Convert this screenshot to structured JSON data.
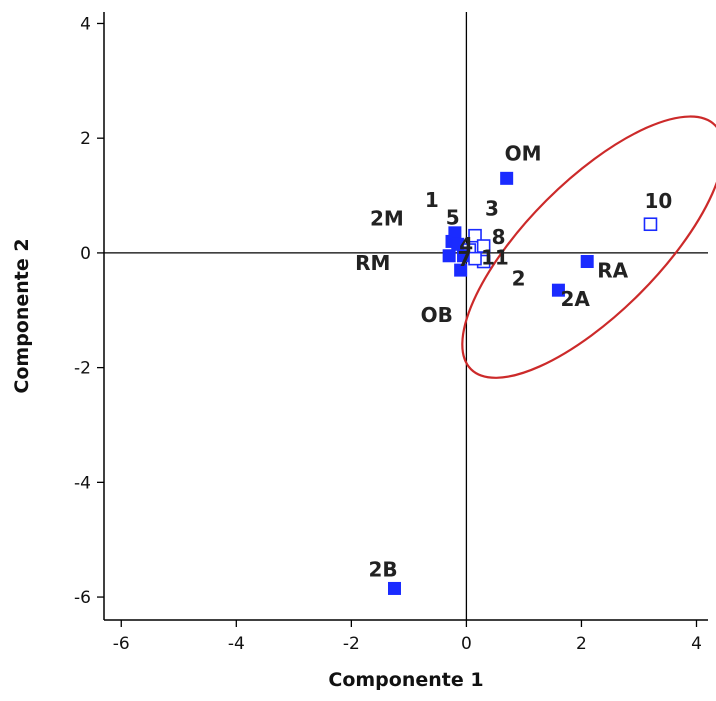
{
  "chart_data": {
    "type": "scatter",
    "xlabel": "Componente 1",
    "ylabel": "Componente 2",
    "xlim": [
      -6.3,
      4.2
    ],
    "ylim": [
      -6.4,
      4.2
    ],
    "xticks": [
      "-6",
      "-4",
      "-2",
      "0",
      "2",
      "4"
    ],
    "yticks": [
      "4",
      "2",
      "0",
      "-2",
      "-4",
      "-6"
    ],
    "grid": false,
    "reference_lines": {
      "x": 0,
      "y": 0
    },
    "colors": {
      "marker": "#1a2bff",
      "ellipse": "#cc2a2a",
      "axis": "#000000"
    },
    "points": [
      {
        "label": "OM",
        "x": 0.7,
        "y": 1.3,
        "filled": true
      },
      {
        "label": "10",
        "x": 3.2,
        "y": 0.5,
        "filled": false
      },
      {
        "label": "RA",
        "x": 2.1,
        "y": -0.15,
        "filled": true
      },
      {
        "label": "2A",
        "x": 1.6,
        "y": -0.65,
        "filled": true
      },
      {
        "label": "2B",
        "x": -1.25,
        "y": -5.85,
        "filled": true
      },
      {
        "label": "RM",
        "x": -0.3,
        "y": -0.05,
        "filled": true
      },
      {
        "label": "OB",
        "x": -0.1,
        "y": -0.3,
        "filled": true
      },
      {
        "label": "2M",
        "x": -0.25,
        "y": 0.2,
        "filled": true
      },
      {
        "label": "1",
        "x": -0.2,
        "y": 0.35,
        "filled": true
      },
      {
        "label": "3",
        "x": 0.15,
        "y": 0.3,
        "filled": false
      },
      {
        "label": "5",
        "x": -0.15,
        "y": 0.15,
        "filled": true
      },
      {
        "label": "8",
        "x": 0.3,
        "y": 0.12,
        "filled": false
      },
      {
        "label": "2",
        "x": 0.3,
        "y": -0.15,
        "filled": false
      },
      {
        "label": "4",
        "x": 0.05,
        "y": 0.05,
        "filled": false
      },
      {
        "label": "7",
        "x": -0.05,
        "y": -0.05,
        "filled": true
      },
      {
        "label": "11",
        "x": 0.15,
        "y": -0.1,
        "filled": false
      }
    ],
    "ellipse": {
      "cx": 2.2,
      "cy": 0.1,
      "rx": 3.0,
      "ry": 1.15,
      "angle_deg": 45
    }
  }
}
